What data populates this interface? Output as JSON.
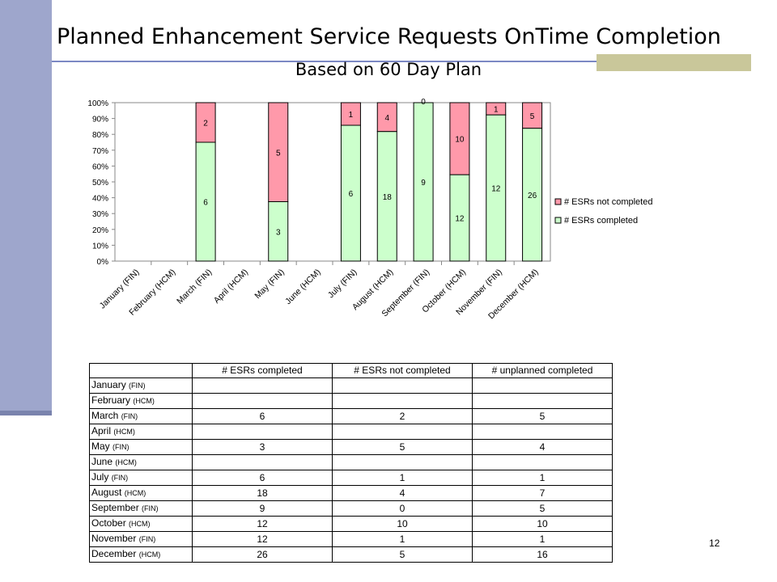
{
  "slide": {
    "title": "Planned Enhancement Service Requests OnTime Completion",
    "page_number": "12"
  },
  "colors": {
    "completed": "#ccffcc",
    "not_completed": "#ff99aa",
    "side_bar": "#9ea6cc",
    "title_rule": "#7c88c4",
    "title_accent": "#c9c79a"
  },
  "chart_data": {
    "type": "bar",
    "stacked": "percent",
    "title": "Based on 60 Day Plan",
    "categories": [
      "January (FIN)",
      "February (HCM)",
      "March (FIN)",
      "April (HCM)",
      "May (FIN)",
      "June (HCM)",
      "July (FIN)",
      "August (HCM)",
      "September (FIN)",
      "October (HCM)",
      "November (FIN)",
      "December (HCM)"
    ],
    "series": [
      {
        "name": "# ESRs completed",
        "values": [
          null,
          null,
          6,
          null,
          3,
          null,
          6,
          18,
          9,
          12,
          12,
          26
        ]
      },
      {
        "name": "# ESRs not completed",
        "values": [
          null,
          null,
          2,
          null,
          5,
          null,
          1,
          4,
          0,
          10,
          1,
          5
        ]
      }
    ],
    "y_ticks": [
      "0%",
      "10%",
      "20%",
      "30%",
      "40%",
      "50%",
      "60%",
      "70%",
      "80%",
      "90%",
      "100%"
    ],
    "ylim": [
      0,
      100
    ],
    "legend": "right",
    "grid": false
  },
  "table": {
    "headers": [
      "# ESRs completed",
      "# ESRs not completed",
      "# unplanned completed"
    ],
    "rows": [
      {
        "month": "January",
        "unit": "(FIN)",
        "values": [
          "",
          "",
          ""
        ]
      },
      {
        "month": "February",
        "unit": "(HCM)",
        "values": [
          "",
          "",
          ""
        ]
      },
      {
        "month": "March",
        "unit": "(FIN)",
        "values": [
          "6",
          "2",
          "5"
        ]
      },
      {
        "month": "April",
        "unit": "(HCM)",
        "values": [
          "",
          "",
          ""
        ]
      },
      {
        "month": "May",
        "unit": "(FIN)",
        "values": [
          "3",
          "5",
          "4"
        ]
      },
      {
        "month": "June",
        "unit": "(HCM)",
        "values": [
          "",
          "",
          ""
        ]
      },
      {
        "month": "July",
        "unit": "(FIN)",
        "values": [
          "6",
          "1",
          "1"
        ]
      },
      {
        "month": "August",
        "unit": "(HCM)",
        "values": [
          "18",
          "4",
          "7"
        ]
      },
      {
        "month": "September",
        "unit": "(FIN)",
        "values": [
          "9",
          "0",
          "5"
        ]
      },
      {
        "month": "October",
        "unit": "(HCM)",
        "values": [
          "12",
          "10",
          "10"
        ]
      },
      {
        "month": "November",
        "unit": "(FIN)",
        "values": [
          "12",
          "1",
          "1"
        ]
      },
      {
        "month": "December",
        "unit": "(HCM)",
        "values": [
          "26",
          "5",
          "16"
        ]
      }
    ]
  }
}
